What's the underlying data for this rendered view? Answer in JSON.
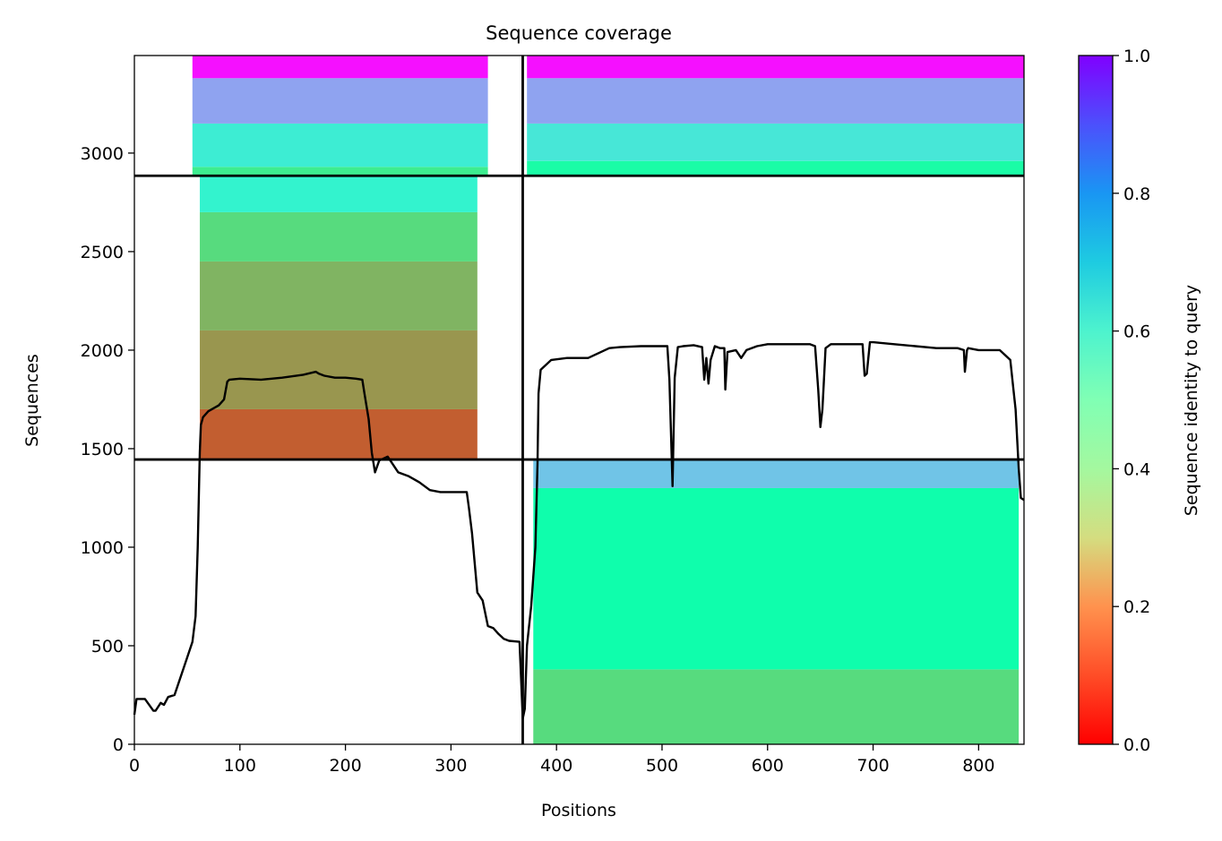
{
  "chart_data": {
    "type": "heatmap",
    "title": "Sequence coverage",
    "xlabel": "Positions",
    "ylabel": "Sequences",
    "xlim": [
      0,
      843
    ],
    "ylim": [
      0,
      3495
    ],
    "x_ticks": [
      "0",
      "100",
      "200",
      "300",
      "400",
      "500",
      "600",
      "700",
      "800"
    ],
    "y_ticks": [
      "0",
      "500",
      "1000",
      "1500",
      "2000",
      "2500",
      "3000"
    ],
    "grid": false,
    "colorbar": {
      "label": "Sequence identity to query",
      "range": [
        0.0,
        1.0
      ],
      "ticks": [
        "0.0",
        "0.2",
        "0.4",
        "0.6",
        "0.8",
        "1.0"
      ],
      "colormap": "rainbow_r"
    },
    "domain_boundaries": {
      "vertical_positions": [
        368
      ],
      "horizontal_sequences": [
        1445,
        2885
      ]
    },
    "blocks": [
      {
        "name": "block-a-lower",
        "x_range": [
          0,
          368
        ],
        "seq_range": [
          0,
          1445
        ],
        "identity": null
      },
      {
        "name": "block-a-middle",
        "x_range": [
          0,
          368
        ],
        "seq_range": [
          1445,
          2885
        ],
        "coverage_x_start": 62,
        "coverage_x_end": 325,
        "identity_bands": [
          {
            "seq": [
              1445,
              1700
            ],
            "identity": 0.12
          },
          {
            "seq": [
              1700,
              2100
            ],
            "identity": 0.2
          },
          {
            "seq": [
              2100,
              2450
            ],
            "identity": 0.25
          },
          {
            "seq": [
              2450,
              2700
            ],
            "identity": 0.33
          },
          {
            "seq": [
              2700,
              2885
            ],
            "identity": 0.6
          }
        ]
      },
      {
        "name": "block-a-upper",
        "x_range": [
          0,
          368
        ],
        "seq_range": [
          2885,
          3495
        ],
        "coverage_x_start": 55,
        "coverage_x_end": 335,
        "identity_bands": [
          {
            "seq": [
              2885,
              2930
            ],
            "identity": 0.38
          },
          {
            "seq": [
              2930,
              3150
            ],
            "identity": 0.62
          },
          {
            "seq": [
              3150,
              3380
            ],
            "identity": 0.78
          },
          {
            "seq": [
              3380,
              3495
            ],
            "identity": 0.98
          }
        ]
      },
      {
        "name": "block-b-lower",
        "x_range": [
          368,
          843
        ],
        "seq_range": [
          0,
          1445
        ],
        "coverage_x_start": 378,
        "coverage_x_end": 838,
        "identity_bands": [
          {
            "seq": [
              0,
              380
            ],
            "identity": 0.33
          },
          {
            "seq": [
              380,
              1300
            ],
            "identity": 0.47
          },
          {
            "seq": [
              1300,
              1445
            ],
            "identity": 0.72
          }
        ]
      },
      {
        "name": "block-b-middle",
        "x_range": [
          368,
          843
        ],
        "seq_range": [
          1445,
          2885
        ],
        "identity": null
      },
      {
        "name": "block-b-upper",
        "x_range": [
          368,
          843
        ],
        "seq_range": [
          2885,
          3495
        ],
        "coverage_x_start": 372,
        "coverage_x_end": 843,
        "identity_bands": [
          {
            "seq": [
              2885,
              2960
            ],
            "identity": 0.45
          },
          {
            "seq": [
              2960,
              3150
            ],
            "identity": 0.64
          },
          {
            "seq": [
              3150,
              3380
            ],
            "identity": 0.78
          },
          {
            "seq": [
              3380,
              3495
            ],
            "identity": 0.98
          }
        ]
      }
    ],
    "coverage_line": {
      "color": "#000000",
      "x": [
        0,
        2,
        10,
        18,
        20,
        25,
        28,
        32,
        38,
        45,
        50,
        55,
        58,
        60,
        62,
        63,
        65,
        70,
        80,
        85,
        88,
        90,
        100,
        120,
        140,
        160,
        172,
        175,
        180,
        190,
        200,
        210,
        216,
        218,
        222,
        225,
        228,
        232,
        240,
        245,
        250,
        260,
        270,
        280,
        290,
        300,
        315,
        317,
        320,
        325,
        330,
        335,
        340,
        345,
        350,
        355,
        365,
        368,
        370,
        372,
        376,
        380,
        382,
        383,
        385,
        395,
        410,
        430,
        450,
        460,
        480,
        500,
        505,
        507,
        510,
        512,
        515,
        520,
        530,
        538,
        540,
        542,
        544,
        546,
        550,
        555,
        559,
        560,
        562,
        570,
        575,
        580,
        590,
        600,
        620,
        640,
        645,
        648,
        650,
        652,
        655,
        660,
        670,
        680,
        690,
        692,
        694,
        697,
        700,
        720,
        740,
        760,
        780,
        786,
        787,
        789,
        790,
        800,
        820,
        830,
        833,
        835,
        838,
        840,
        843
      ],
      "y": [
        150,
        230,
        230,
        170,
        170,
        210,
        200,
        240,
        250,
        360,
        440,
        520,
        650,
        1000,
        1480,
        1620,
        1660,
        1690,
        1720,
        1750,
        1840,
        1850,
        1855,
        1850,
        1860,
        1875,
        1890,
        1880,
        1870,
        1860,
        1860,
        1855,
        1850,
        1780,
        1650,
        1480,
        1380,
        1440,
        1460,
        1420,
        1380,
        1360,
        1330,
        1290,
        1280,
        1280,
        1280,
        1200,
        1070,
        770,
        730,
        600,
        590,
        560,
        535,
        525,
        520,
        130,
        180,
        500,
        700,
        1000,
        1430,
        1780,
        1900,
        1950,
        1960,
        1960,
        2010,
        2015,
        2020,
        2020,
        2020,
        1850,
        1310,
        1860,
        2015,
        2020,
        2025,
        2015,
        1850,
        1960,
        1830,
        1950,
        2020,
        2010,
        2010,
        1800,
        1990,
        2000,
        1960,
        2000,
        2020,
        2030,
        2030,
        2030,
        2020,
        1800,
        1610,
        1700,
        2010,
        2030,
        2030,
        2030,
        2030,
        1870,
        1880,
        2040,
        2040,
        2030,
        2020,
        2010,
        2010,
        2000,
        1890,
        2000,
        2010,
        2000,
        2000,
        1950,
        1800,
        1700,
        1400,
        1250,
        1240
      ]
    }
  }
}
